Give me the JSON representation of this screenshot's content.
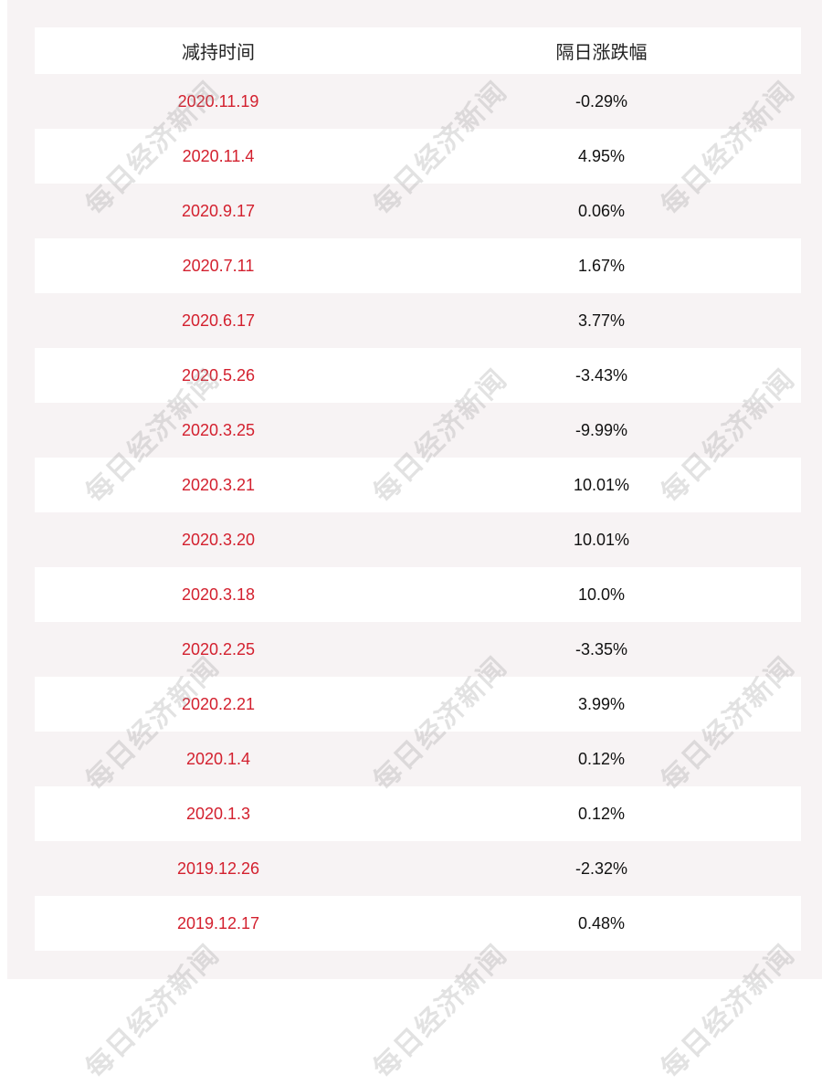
{
  "table": {
    "headers": [
      "减持时间",
      "隔日涨跌幅"
    ],
    "rows": [
      {
        "date": "2020.11.19",
        "change": "-0.29%"
      },
      {
        "date": "2020.11.4",
        "change": "4.95%"
      },
      {
        "date": "2020.9.17",
        "change": "0.06%"
      },
      {
        "date": "2020.7.11",
        "change": "1.67%"
      },
      {
        "date": "2020.6.17",
        "change": "3.77%"
      },
      {
        "date": "2020.5.26",
        "change": "-3.43%"
      },
      {
        "date": "2020.3.25",
        "change": "-9.99%"
      },
      {
        "date": "2020.3.21",
        "change": "10.01%"
      },
      {
        "date": "2020.3.20",
        "change": "10.01%"
      },
      {
        "date": "2020.3.18",
        "change": "10.0%"
      },
      {
        "date": "2020.2.25",
        "change": "-3.35%"
      },
      {
        "date": "2020.2.21",
        "change": "3.99%"
      },
      {
        "date": "2020.1.4",
        "change": "0.12%"
      },
      {
        "date": "2020.1.3",
        "change": "0.12%"
      },
      {
        "date": "2019.12.26",
        "change": "-2.32%"
      },
      {
        "date": "2019.12.17",
        "change": "0.48%"
      }
    ]
  },
  "watermark": "每日经济新闻",
  "colors": {
    "date": "#d3202e",
    "background": "#f7f3f4",
    "row_alt": "#ffffff"
  }
}
